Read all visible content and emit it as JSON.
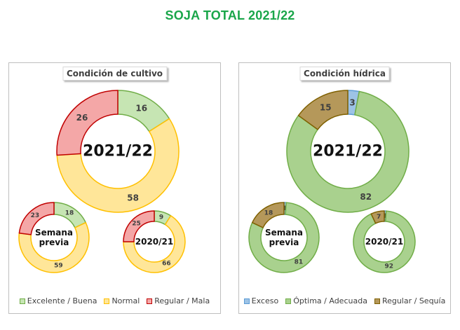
{
  "title": "SOJA TOTAL 2021/22",
  "colors": {
    "title": "#1aa64a",
    "excelente": "#c6e5b3",
    "excelente_border": "#70ad47",
    "normal": "#ffe699",
    "normal_border": "#ffc000",
    "mala": "#f4a7a7",
    "mala_border": "#c00000",
    "exceso": "#9dc3e6",
    "exceso_border": "#5b9bd5",
    "optima": "#a9d18e",
    "optima_border": "#70ad47",
    "sequia": "#b5985a",
    "sequia_border": "#7f6000"
  },
  "chart_data": [
    {
      "type": "pie",
      "panel": "Condición de cultivo",
      "legend": [
        "Excelente / Buena",
        "Normal",
        "Regular / Mala"
      ],
      "donuts": [
        {
          "label": "2021/22",
          "values": [
            16,
            58,
            26
          ]
        },
        {
          "label": "Semana previa",
          "values": [
            18,
            59,
            23
          ]
        },
        {
          "label": "2020/21",
          "values": [
            9,
            66,
            25
          ]
        }
      ]
    },
    {
      "type": "pie",
      "panel": "Condición hídrica",
      "legend": [
        "Exceso",
        "Óptima / Adecuada",
        "Regular / Sequía"
      ],
      "donuts": [
        {
          "label": "2021/22",
          "values": [
            3,
            82,
            15
          ]
        },
        {
          "label": "Semana previa",
          "values": [
            1,
            81,
            18
          ]
        },
        {
          "label": "2020/21",
          "values": [
            1,
            92,
            7
          ]
        }
      ]
    }
  ]
}
